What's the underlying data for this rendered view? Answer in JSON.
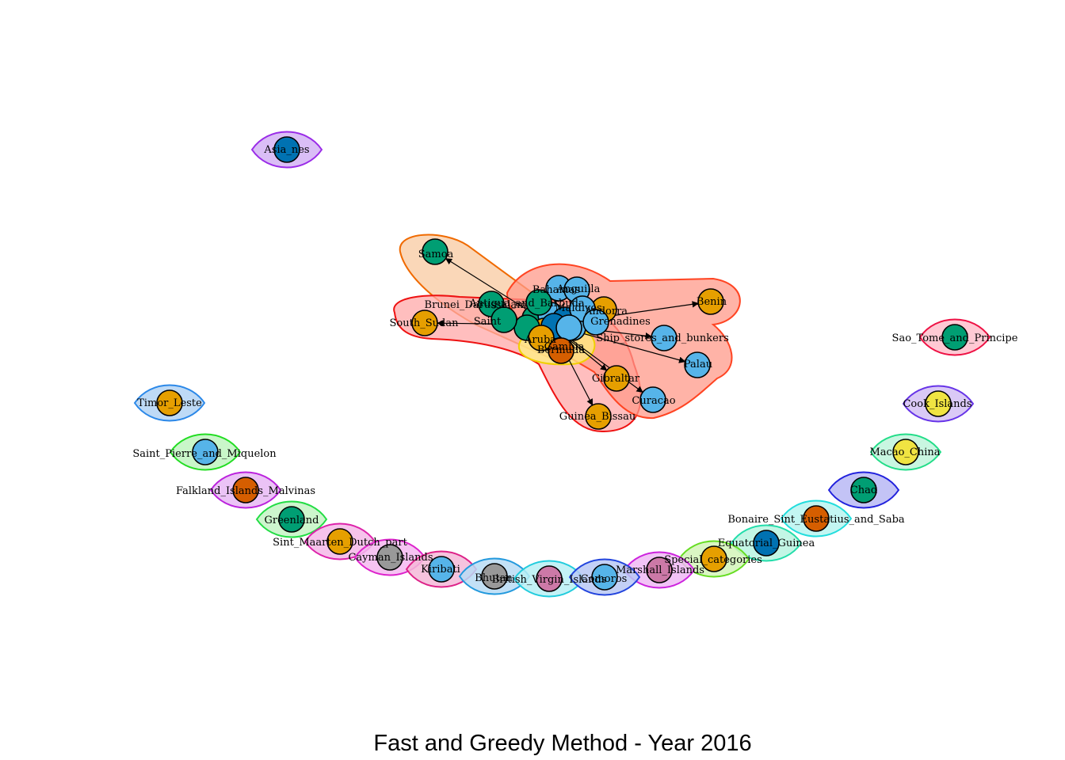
{
  "title": "Fast and Greedy Method - Year 2016",
  "colors": {
    "orange": "#E69F00",
    "skyblue": "#56B4E9",
    "green": "#009E73",
    "yellow": "#F0E442",
    "blue": "#0072B2",
    "vermilion": "#D55E00",
    "purple": "#CC79A7",
    "grey": "#999999"
  },
  "clusters": [
    {
      "name": "orange-community",
      "fill": "#F8C9A0",
      "stroke": "#F06A00"
    },
    {
      "name": "red-community",
      "fill": "#FFA8A8",
      "stroke": "#EE1111"
    },
    {
      "name": "tomato-community",
      "fill": "#FF9A8A",
      "stroke": "#FF4422"
    },
    {
      "name": "yellow-community",
      "fill": "#FFF080",
      "stroke": "#F0D000"
    }
  ],
  "nodes": [
    {
      "id": "asia",
      "label": "Asia_nes",
      "color": "blue",
      "halo_fill": "#D4B3F5",
      "halo_stroke": "#9A2BE8"
    },
    {
      "id": "samoa",
      "label": "Samoa",
      "color": "green"
    },
    {
      "id": "bahamas",
      "label": "Bahamas",
      "color": "skyblue"
    },
    {
      "id": "anguilla",
      "label": "Anguilla",
      "color": "skyblue"
    },
    {
      "id": "brunei",
      "label": "Brunei_Darussalam",
      "color": "green"
    },
    {
      "id": "antigua",
      "label": "Antigua_and_Barbuda",
      "color": "green"
    },
    {
      "id": "andorra",
      "label": "Andorra",
      "color": "orange"
    },
    {
      "id": "maldives",
      "label": "Maldives",
      "color": "skyblue"
    },
    {
      "id": "grenadines",
      "label": "Grenadines",
      "color": "skyblue"
    },
    {
      "id": "benin",
      "label": "Benin",
      "color": "orange"
    },
    {
      "id": "southsudan",
      "label": "South_Sudan",
      "color": "orange"
    },
    {
      "id": "saint",
      "label": "Saint",
      "color": "green"
    },
    {
      "id": "shipstores",
      "label": "Ship_stores_and_bunkers",
      "color": "skyblue"
    },
    {
      "id": "aruba",
      "label": "Aruba",
      "color": "orange"
    },
    {
      "id": "gambia",
      "label": "Gambia",
      "color": "skyblue"
    },
    {
      "id": "bermuda",
      "label": "Bermuda",
      "color": "vermilion"
    },
    {
      "id": "palau",
      "label": "Palau",
      "color": "skyblue"
    },
    {
      "id": "gibraltar",
      "label": "Gibraltar",
      "color": "orange"
    },
    {
      "id": "curacao",
      "label": "Curacao",
      "color": "skyblue"
    },
    {
      "id": "guineabissau",
      "label": "Guinea_Bissau",
      "color": "orange"
    },
    {
      "id": "saotome",
      "label": "Sao_Tome_and_Principe",
      "color": "green",
      "halo_fill": "#FFC0CC",
      "halo_stroke": "#EE1144"
    },
    {
      "id": "timor",
      "label": "Timor_Leste",
      "color": "orange",
      "halo_fill": "#B3D4F5",
      "halo_stroke": "#2B88E8"
    },
    {
      "id": "cook",
      "label": "Cook_Islands",
      "color": "yellow",
      "halo_fill": "#D4C0F5",
      "halo_stroke": "#6633E8"
    },
    {
      "id": "stpierre",
      "label": "Saint_Pierre_and_Miquelon",
      "color": "skyblue",
      "halo_fill": "#C0F5C0",
      "halo_stroke": "#22DD22"
    },
    {
      "id": "macao",
      "label": "Macao_China",
      "color": "yellow",
      "halo_fill": "#C0F5DC",
      "halo_stroke": "#22DD88"
    },
    {
      "id": "falkland",
      "label": "Falkland_Islands_Malvinas",
      "color": "vermilion",
      "halo_fill": "#E8B8F5",
      "halo_stroke": "#BB22DD"
    },
    {
      "id": "chad",
      "label": "Chad",
      "color": "green",
      "halo_fill": "#B8B8F5",
      "halo_stroke": "#2222DD"
    },
    {
      "id": "greenland",
      "label": "Greenland",
      "color": "green",
      "halo_fill": "#C4F5C4",
      "halo_stroke": "#22DD44"
    },
    {
      "id": "bonaire",
      "label": "Bonaire_Sint_Eustatius_and_Saba",
      "color": "vermilion",
      "halo_fill": "#B8F5F0",
      "halo_stroke": "#22DDDD"
    },
    {
      "id": "sintmaarten",
      "label": "Sint_Maarten_Dutch_part",
      "color": "orange",
      "halo_fill": "#F5B8E8",
      "halo_stroke": "#DD22AA"
    },
    {
      "id": "eqguinea",
      "label": "Equatorial_Guinea",
      "color": "blue",
      "halo_fill": "#B8F5E0",
      "halo_stroke": "#22DDAA"
    },
    {
      "id": "cayman",
      "label": "Cayman_Islands",
      "color": "grey",
      "halo_fill": "#F5B8F0",
      "halo_stroke": "#DD22CC"
    },
    {
      "id": "special",
      "label": "Special_categories",
      "color": "orange",
      "halo_fill": "#D4F5B8",
      "halo_stroke": "#66DD22"
    },
    {
      "id": "kiribati",
      "label": "Kiribati",
      "color": "skyblue",
      "halo_fill": "#F5B8D8",
      "halo_stroke": "#DD2288"
    },
    {
      "id": "marshall",
      "label": "Marshall_Islands",
      "color": "purple",
      "halo_fill": "#F0B8F5",
      "halo_stroke": "#CC22DD"
    },
    {
      "id": "bhutan",
      "label": "Bhutan",
      "color": "grey",
      "halo_fill": "#B8DCF5",
      "halo_stroke": "#2299DD"
    },
    {
      "id": "bvi",
      "label": "British_Virgin_Islands",
      "color": "purple",
      "halo_fill": "#B8F0F5",
      "halo_stroke": "#22CCDD"
    },
    {
      "id": "comoros",
      "label": "Comoros",
      "color": "skyblue",
      "halo_fill": "#B8C8F5",
      "halo_stroke": "#2244DD"
    }
  ],
  "edges": [
    [
      "hub",
      "samoa"
    ],
    [
      "hub",
      "southsudan"
    ],
    [
      "hub",
      "benin"
    ],
    [
      "hub",
      "shipstores"
    ],
    [
      "hub",
      "palau"
    ],
    [
      "hub",
      "gibraltar"
    ],
    [
      "hub",
      "curacao"
    ],
    [
      "hub",
      "guineabissau"
    ],
    [
      "hub",
      "bermuda"
    ],
    [
      "hub",
      "grenadines"
    ],
    [
      "hub",
      "andorra"
    ],
    [
      "hub",
      "bahamas"
    ]
  ]
}
